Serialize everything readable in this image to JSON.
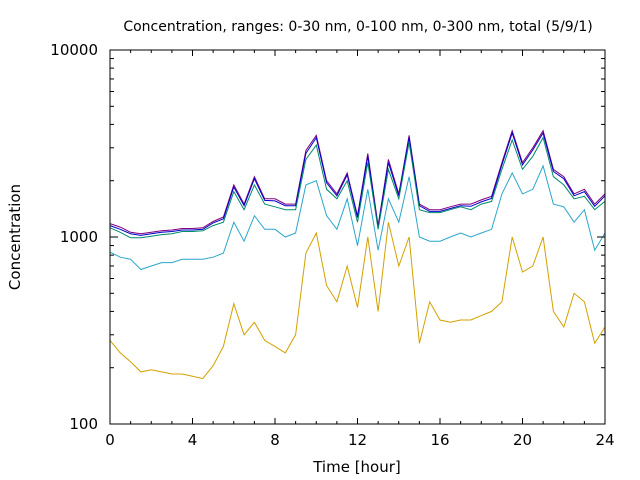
{
  "chart_data": {
    "type": "line",
    "title": "Concentration, ranges: 0-30 nm, 0-100 nm, 0-300 nm, total (5/9/1)",
    "xlabel": "Time [hour]",
    "ylabel": "Concentration",
    "xlim": [
      0,
      24
    ],
    "ylim": [
      100,
      10000
    ],
    "yscale": "log",
    "x_ticks": [
      "0",
      "4",
      "8",
      "12",
      "16",
      "20",
      "24"
    ],
    "y_ticks": [
      "100",
      "1000",
      "10000"
    ],
    "grid": false,
    "legend": "none",
    "x": [
      0,
      0.5,
      1,
      1.5,
      2,
      2.5,
      3,
      3.5,
      4,
      4.5,
      5,
      5.5,
      6,
      6.5,
      7,
      7.5,
      8,
      8.5,
      9,
      9.5,
      10,
      10.5,
      11,
      11.5,
      12,
      12.5,
      13,
      13.5,
      14,
      14.5,
      15,
      15.5,
      16,
      16.5,
      17,
      17.5,
      18,
      18.5,
      19,
      19.5,
      20,
      20.5,
      21,
      21.5,
      22,
      22.5,
      23,
      23.5,
      24
    ],
    "series": [
      {
        "color": "#800080",
        "values": [
          1180,
          1130,
          1060,
          1040,
          1060,
          1080,
          1090,
          1110,
          1110,
          1120,
          1210,
          1280,
          1900,
          1500,
          2100,
          1600,
          1600,
          1500,
          1500,
          2900,
          3500,
          2000,
          1700,
          2200,
          1300,
          2800,
          1150,
          2600,
          1700,
          3500,
          1500,
          1400,
          1400,
          1450,
          1500,
          1500,
          1580,
          1650,
          2500,
          3700,
          2500,
          3000,
          3700,
          2300,
          2100,
          1700,
          1800,
          1500,
          1700
        ]
      },
      {
        "color": "#0000cc",
        "values": [
          1150,
          1100,
          1040,
          1020,
          1040,
          1060,
          1070,
          1090,
          1090,
          1100,
          1190,
          1250,
          1850,
          1470,
          2050,
          1570,
          1560,
          1470,
          1470,
          2800,
          3400,
          1950,
          1660,
          2150,
          1270,
          2700,
          1120,
          2500,
          1660,
          3400,
          1470,
          1370,
          1370,
          1420,
          1470,
          1460,
          1540,
          1610,
          2430,
          3600,
          2430,
          2920,
          3600,
          2240,
          2050,
          1660,
          1750,
          1460,
          1660
        ]
      },
      {
        "color": "#008b6b",
        "values": [
          1120,
          1060,
          990,
          990,
          1010,
          1030,
          1040,
          1070,
          1070,
          1080,
          1150,
          1200,
          1750,
          1400,
          1900,
          1500,
          1450,
          1400,
          1400,
          2600,
          3100,
          1800,
          1600,
          2000,
          1200,
          2500,
          1100,
          2300,
          1600,
          3200,
          1400,
          1350,
          1350,
          1400,
          1450,
          1400,
          1500,
          1550,
          2300,
          3300,
          2300,
          2700,
          3400,
          2100,
          1900,
          1600,
          1650,
          1400,
          1550
        ]
      },
      {
        "color": "#2aa6cc",
        "values": [
          830,
          780,
          760,
          670,
          700,
          730,
          730,
          760,
          760,
          760,
          780,
          820,
          1200,
          950,
          1300,
          1100,
          1100,
          1000,
          1050,
          1900,
          2000,
          1300,
          1100,
          1600,
          900,
          1800,
          850,
          1600,
          1200,
          2100,
          1000,
          950,
          950,
          1000,
          1050,
          1000,
          1050,
          1100,
          1700,
          2200,
          1700,
          1800,
          2400,
          1500,
          1450,
          1200,
          1400,
          850,
          1050
        ]
      },
      {
        "color": "#d4a000",
        "values": [
          280,
          240,
          215,
          190,
          195,
          190,
          185,
          185,
          180,
          175,
          205,
          260,
          440,
          300,
          350,
          280,
          260,
          240,
          300,
          820,
          1050,
          550,
          450,
          700,
          420,
          1000,
          400,
          1200,
          700,
          1000,
          270,
          450,
          360,
          350,
          360,
          360,
          380,
          400,
          450,
          1000,
          650,
          700,
          1000,
          400,
          330,
          500,
          450,
          270,
          330
        ]
      }
    ]
  }
}
